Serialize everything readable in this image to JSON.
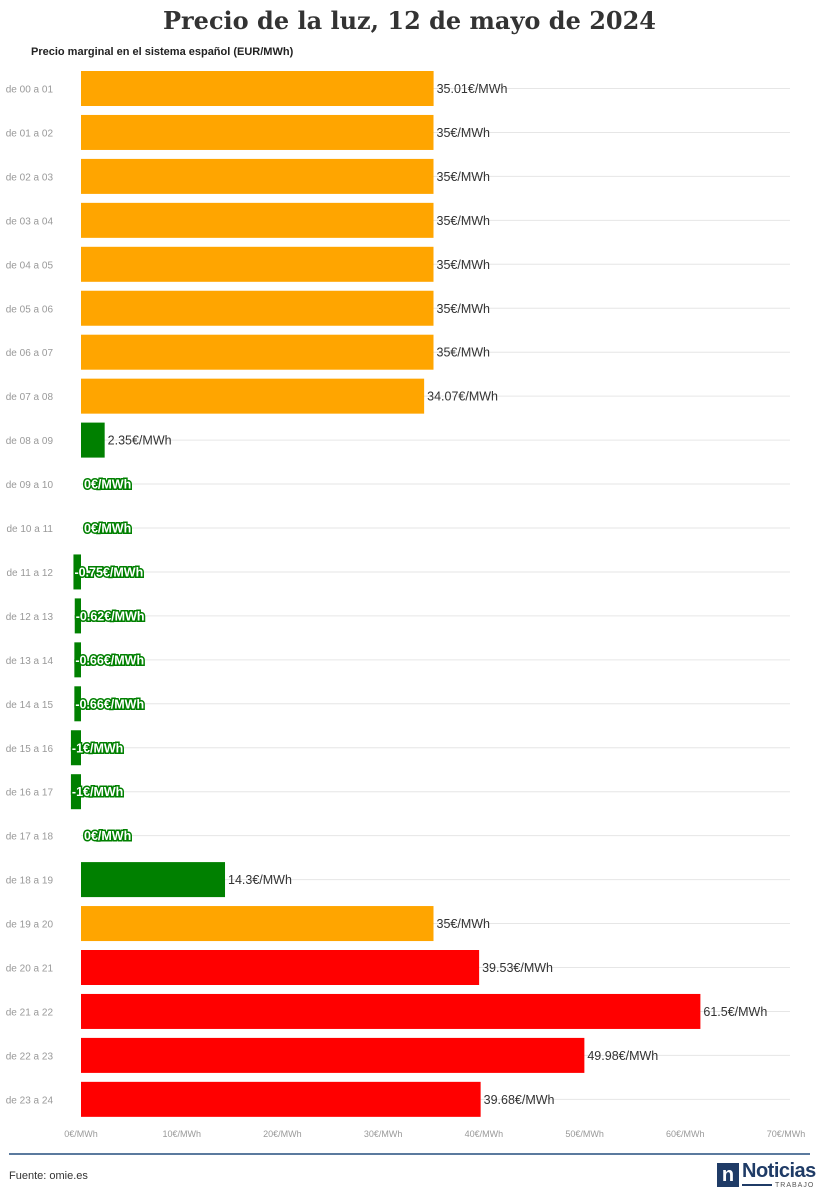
{
  "title": "Precio de la luz, 12 de mayo de 2024",
  "subtitle": "Precio marginal en el sistema español (EUR/MWh)",
  "source": "Fuente: omie.es",
  "logo": {
    "text": "Noticias",
    "sub": "TRABAJO",
    "letter": "n"
  },
  "colors": {
    "orange": "#FFA500",
    "green": "#008000",
    "red": "#FF0000",
    "grid": "#e6e6e6",
    "axis_label": "#999999"
  },
  "chart_data": {
    "type": "bar",
    "orientation": "horizontal",
    "categories": [
      "de 00 a 01",
      "de 01 a 02",
      "de 02 a 03",
      "de 03 a 04",
      "de 04 a 05",
      "de 05 a 06",
      "de 06 a 07",
      "de 07 a 08",
      "de 08 a 09",
      "de 09 a 10",
      "de 10 a 11",
      "de 11 a 12",
      "de 12 a 13",
      "de 13 a 14",
      "de 14 a 15",
      "de 15 a 16",
      "de 16 a 17",
      "de 17 a 18",
      "de 18 a 19",
      "de 19 a 20",
      "de 20 a 21",
      "de 21 a 22",
      "de 22 a 23",
      "de 23 a 24"
    ],
    "values": [
      35.01,
      35,
      35,
      35,
      35,
      35,
      35,
      34.07,
      2.35,
      0,
      0,
      -0.75,
      -0.62,
      -0.66,
      -0.66,
      -1,
      -1,
      0,
      14.3,
      35,
      39.53,
      61.5,
      49.98,
      39.68
    ],
    "labels": [
      "35.01€/MWh",
      "35€/MWh",
      "35€/MWh",
      "35€/MWh",
      "35€/MWh",
      "35€/MWh",
      "35€/MWh",
      "34.07€/MWh",
      "2.35€/MWh",
      "0€/MWh",
      "0€/MWh",
      "-0.75€/MWh",
      "-0.62€/MWh",
      "-0.66€/MWh",
      "-0.66€/MWh",
      "-1€/MWh",
      "-1€/MWh",
      "0€/MWh",
      "14.3€/MWh",
      "35€/MWh",
      "39.53€/MWh",
      "61.5€/MWh",
      "49.98€/MWh",
      "39.68€/MWh"
    ],
    "bar_colors": [
      "orange",
      "orange",
      "orange",
      "orange",
      "orange",
      "orange",
      "orange",
      "orange",
      "green",
      "green",
      "green",
      "green",
      "green",
      "green",
      "green",
      "green",
      "green",
      "green",
      "green",
      "orange",
      "red",
      "red",
      "red",
      "red"
    ],
    "xlim": [
      0,
      70
    ],
    "x_ticks": [
      "0€/MWh",
      "10€/MWh",
      "20€/MWh",
      "30€/MWh",
      "40€/MWh",
      "50€/MWh",
      "60€/MWh",
      "70€/MWh"
    ],
    "grid": true
  }
}
